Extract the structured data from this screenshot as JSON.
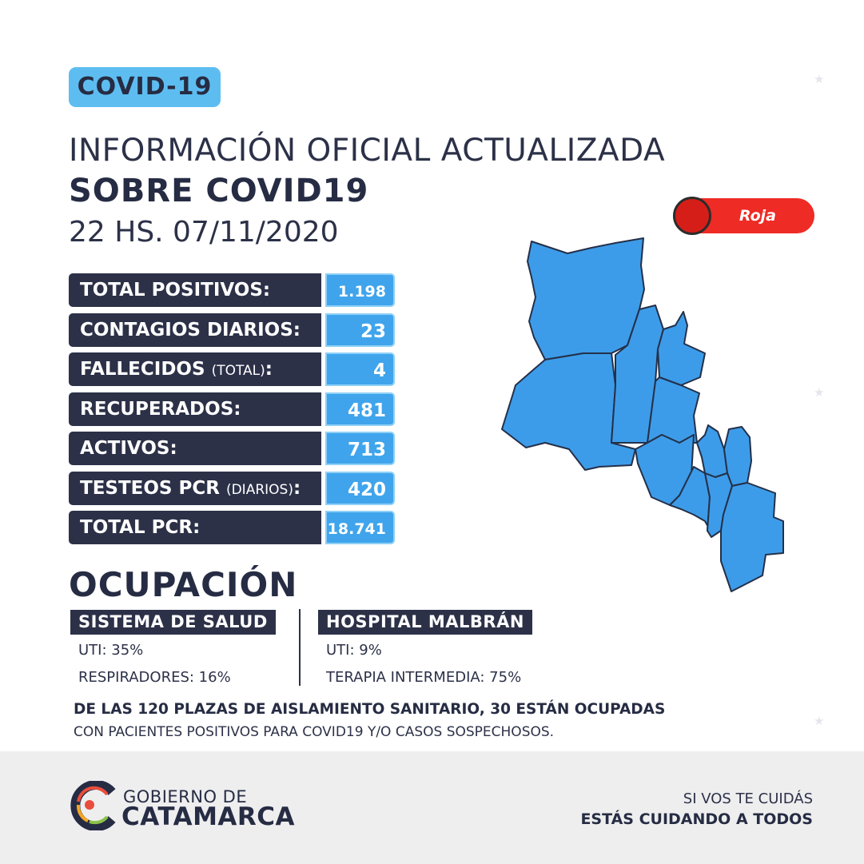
{
  "badge": "COVID-19",
  "header": {
    "line1": "INFORMACIÓN OFICIAL ACTUALIZADA",
    "line2": "SOBRE COVID19",
    "date": "22 HS. 07/11/2020"
  },
  "alert": {
    "label": "Roja",
    "color": "#ee2b25"
  },
  "stats": [
    {
      "label": "TOTAL POSITIVOS",
      "sub": "",
      "value": "1.198"
    },
    {
      "label": "CONTAGIOS DIARIOS",
      "sub": "",
      "value": "23"
    },
    {
      "label": "FALLECIDOS",
      "sub": "(TOTAL)",
      "value": "4"
    },
    {
      "label": "RECUPERADOS",
      "sub": "",
      "value": "481"
    },
    {
      "label": "ACTIVOS",
      "sub": "",
      "value": "713"
    },
    {
      "label": "TESTEOS PCR",
      "sub": "(DIARIOS)",
      "value": "420"
    },
    {
      "label": "TOTAL PCR",
      "sub": "",
      "value": "18.741"
    }
  ],
  "occupancy": {
    "title": "OCUPACIÓN",
    "health_system": {
      "title": "SISTEMA DE SALUD",
      "uti": "UTI: 35%",
      "respirators": "RESPIRADORES: 16%"
    },
    "hospital": {
      "title": "HOSPITAL MALBRÁN",
      "uti": "UTI: 9%",
      "intermediate": "TERAPIA INTERMEDIA: 75%"
    }
  },
  "note": {
    "line1": "DE LAS 120 PLAZAS DE AISLAMIENTO SANITARIO, 30 ESTÁN OCUPADAS",
    "line2": "CON PACIENTES POSITIVOS PARA COVID19 Y/O CASOS SOSPECHOSOS."
  },
  "footer": {
    "gov_line1": "GOBIERNO DE",
    "gov_line2": "CATAMARCA",
    "slogan1": "SI VOS TE CUIDÁS",
    "slogan2": "ESTÁS CUIDANDO A TODOS"
  },
  "colors": {
    "navy": "#2c3148",
    "accent_blue": "#3fa4ec",
    "badge_blue": "#5ebdf0",
    "map_fill": "#3d9ce9",
    "alert_red": "#ee2b25"
  }
}
